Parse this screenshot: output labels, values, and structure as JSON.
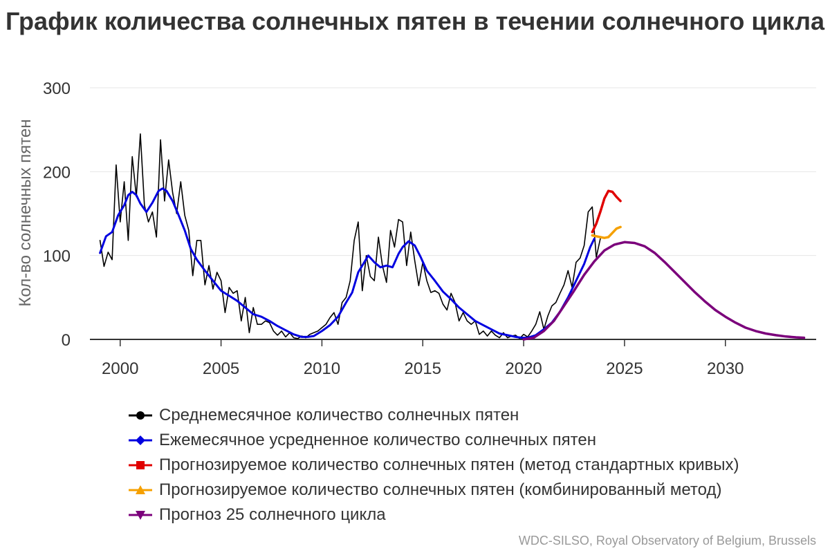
{
  "chart_data": {
    "type": "line",
    "title": "График количества солнечных пятен в течении солнечного цикла",
    "ylabel": "Кол-во солнечных пятен",
    "xlabel": "",
    "xlim": [
      1998.5,
      2034.5
    ],
    "ylim": [
      0,
      300
    ],
    "yticks": [
      0,
      100,
      200,
      300
    ],
    "xticks": [
      2000,
      2005,
      2010,
      2015,
      2020,
      2025,
      2030
    ],
    "grid": true,
    "legend_position": "bottom",
    "series": [
      {
        "name": "Среднемесячное количество солнечных пятен",
        "color": "#000000",
        "marker": "circle",
        "x": [
          1999.0,
          1999.2,
          1999.4,
          1999.6,
          1999.8,
          2000.0,
          2000.2,
          2000.4,
          2000.6,
          2000.8,
          2001.0,
          2001.2,
          2001.4,
          2001.6,
          2001.8,
          2002.0,
          2002.2,
          2002.4,
          2002.6,
          2002.8,
          2003.0,
          2003.2,
          2003.4,
          2003.6,
          2003.8,
          2004.0,
          2004.2,
          2004.4,
          2004.6,
          2004.8,
          2005.0,
          2005.2,
          2005.4,
          2005.6,
          2005.8,
          2006.0,
          2006.2,
          2006.4,
          2006.6,
          2006.8,
          2007.0,
          2007.2,
          2007.4,
          2007.6,
          2007.8,
          2008.0,
          2008.2,
          2008.4,
          2008.6,
          2008.8,
          2009.0,
          2009.2,
          2009.4,
          2009.6,
          2009.8,
          2010.0,
          2010.2,
          2010.4,
          2010.6,
          2010.8,
          2011.0,
          2011.2,
          2011.4,
          2011.6,
          2011.8,
          2012.0,
          2012.2,
          2012.4,
          2012.6,
          2012.8,
          2013.0,
          2013.2,
          2013.4,
          2013.6,
          2013.8,
          2014.0,
          2014.2,
          2014.4,
          2014.6,
          2014.8,
          2015.0,
          2015.2,
          2015.4,
          2015.6,
          2015.8,
          2016.0,
          2016.2,
          2016.4,
          2016.6,
          2016.8,
          2017.0,
          2017.2,
          2017.4,
          2017.6,
          2017.8,
          2018.0,
          2018.2,
          2018.4,
          2018.6,
          2018.8,
          2019.0,
          2019.2,
          2019.4,
          2019.6,
          2019.8,
          2020.0,
          2020.2,
          2020.4,
          2020.6,
          2020.8,
          2021.0,
          2021.2,
          2021.4,
          2021.6,
          2021.8,
          2022.0,
          2022.2,
          2022.4,
          2022.6,
          2022.8,
          2023.0,
          2023.2,
          2023.4,
          2023.6,
          2023.8
        ],
        "values": [
          118,
          87,
          104,
          95,
          208,
          140,
          188,
          118,
          218,
          170,
          245,
          160,
          140,
          152,
          122,
          238,
          165,
          214,
          175,
          150,
          188,
          148,
          130,
          76,
          118,
          118,
          65,
          88,
          60,
          80,
          70,
          32,
          62,
          55,
          58,
          22,
          50,
          8,
          38,
          18,
          18,
          22,
          20,
          10,
          5,
          10,
          3,
          8,
          2,
          1,
          4,
          2,
          6,
          8,
          10,
          14,
          18,
          26,
          32,
          18,
          44,
          50,
          70,
          118,
          140,
          58,
          100,
          75,
          70,
          122,
          88,
          68,
          130,
          110,
          143,
          140,
          88,
          128,
          94,
          64,
          92,
          70,
          56,
          58,
          55,
          42,
          35,
          55,
          44,
          22,
          32,
          22,
          18,
          22,
          6,
          10,
          4,
          10,
          5,
          2,
          8,
          2,
          4,
          5,
          1,
          6,
          3,
          10,
          18,
          33,
          12,
          28,
          40,
          44,
          55,
          65,
          82,
          62,
          92,
          97,
          112,
          152,
          158,
          98,
          120
        ]
      },
      {
        "name": "Ежемесячное усредненное количество солнечных пятен",
        "color": "#0000e0",
        "marker": "diamond",
        "x": [
          1999.0,
          1999.3,
          1999.6,
          1999.9,
          2000.2,
          2000.4,
          2000.6,
          2000.8,
          2001.0,
          2001.3,
          2001.6,
          2001.9,
          2002.1,
          2002.3,
          2002.6,
          2002.9,
          2003.2,
          2003.5,
          2003.8,
          2004.2,
          2004.6,
          2005.0,
          2005.4,
          2005.8,
          2006.2,
          2006.6,
          2007.0,
          2007.4,
          2007.8,
          2008.2,
          2008.6,
          2009.0,
          2009.3,
          2009.6,
          2010.0,
          2010.4,
          2010.8,
          2011.2,
          2011.5,
          2011.8,
          2012.0,
          2012.3,
          2012.6,
          2012.9,
          2013.2,
          2013.5,
          2013.8,
          2014.0,
          2014.3,
          2014.6,
          2014.9,
          2015.2,
          2015.6,
          2016.0,
          2016.4,
          2016.8,
          2017.2,
          2017.6,
          2018.0,
          2018.4,
          2018.8,
          2019.2,
          2019.6,
          2019.9,
          2020.2,
          2020.6,
          2021.0,
          2021.4,
          2021.8,
          2022.2,
          2022.6,
          2023.0,
          2023.3,
          2023.5
        ],
        "values": [
          103,
          123,
          128,
          148,
          160,
          172,
          176,
          172,
          162,
          152,
          163,
          177,
          180,
          177,
          165,
          148,
          130,
          108,
          95,
          82,
          70,
          58,
          52,
          46,
          38,
          30,
          27,
          22,
          16,
          11,
          6,
          3,
          3,
          4,
          10,
          17,
          27,
          44,
          56,
          80,
          88,
          100,
          92,
          86,
          88,
          86,
          102,
          110,
          117,
          112,
          98,
          82,
          70,
          57,
          48,
          38,
          30,
          22,
          17,
          12,
          7,
          5,
          3,
          2,
          2,
          5,
          12,
          20,
          33,
          50,
          70,
          90,
          110,
          120
        ]
      },
      {
        "name": "Прогнозируемое количество солнечных пятен (метод стандартных кривых)",
        "color": "#e00000",
        "marker": "square",
        "x": [
          2023.4,
          2023.6,
          2023.8,
          2024.0,
          2024.2,
          2024.4,
          2024.6,
          2024.8
        ],
        "values": [
          128,
          138,
          152,
          168,
          177,
          176,
          170,
          165
        ]
      },
      {
        "name": "Прогнозируемое количество солнечных пятен (комбинированный метод)",
        "color": "#f5a000",
        "marker": "triangle-up",
        "x": [
          2023.4,
          2023.6,
          2023.8,
          2024.0,
          2024.2,
          2024.4,
          2024.6,
          2024.8
        ],
        "values": [
          124,
          123,
          122,
          121,
          122,
          127,
          132,
          134
        ]
      },
      {
        "name": "Прогноз 25 солнечного цикла",
        "color": "#7b007b",
        "marker": "triangle-down",
        "x": [
          2020.0,
          2020.5,
          2021.0,
          2021.5,
          2022.0,
          2022.5,
          2023.0,
          2023.5,
          2024.0,
          2024.5,
          2025.0,
          2025.5,
          2026.0,
          2026.5,
          2027.0,
          2027.5,
          2028.0,
          2028.5,
          2029.0,
          2029.5,
          2030.0,
          2030.5,
          2031.0,
          2031.5,
          2032.0,
          2032.5,
          2033.0,
          2033.5,
          2033.9
        ],
        "values": [
          0,
          2,
          10,
          22,
          40,
          58,
          77,
          93,
          106,
          113,
          116,
          115,
          111,
          103,
          92,
          80,
          68,
          56,
          45,
          35,
          27,
          20,
          14,
          10,
          7,
          5,
          3.5,
          2.5,
          2
        ]
      }
    ],
    "credits": "WDC-SILSO, Royal Observatory of Belgium, Brussels"
  }
}
